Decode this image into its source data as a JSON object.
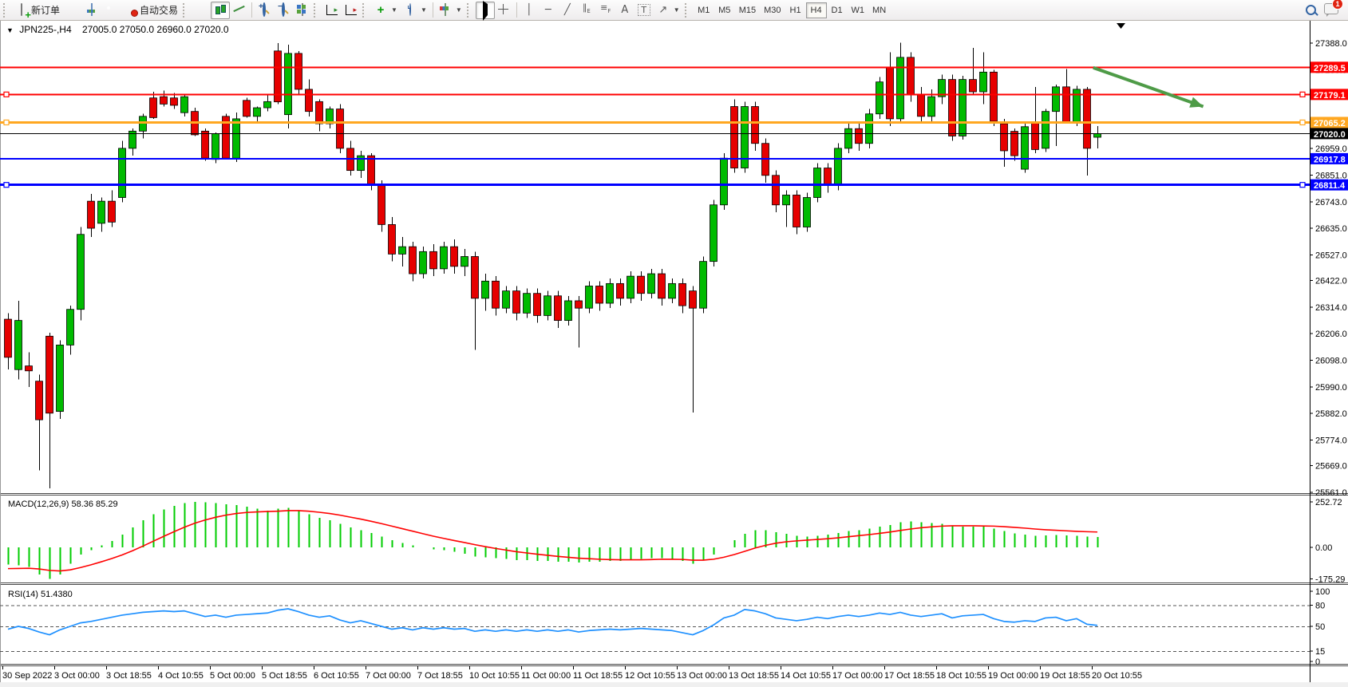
{
  "toolbar": {
    "new_order": "新订单",
    "autotrading": "自动交易",
    "timeframes": [
      {
        "label": "M1",
        "active": false
      },
      {
        "label": "M5",
        "active": false
      },
      {
        "label": "M15",
        "active": false
      },
      {
        "label": "M30",
        "active": false
      },
      {
        "label": "H1",
        "active": false
      },
      {
        "label": "H4",
        "active": true
      },
      {
        "label": "D1",
        "active": false
      },
      {
        "label": "W1",
        "active": false
      },
      {
        "label": "MN",
        "active": false
      }
    ],
    "chat_badge": "1",
    "icons": {
      "new-order-icon": "doc-plus",
      "styler-icon": "gold-gem",
      "market-watch-icon": "mini-chart-window",
      "signals-icon": "green-orb",
      "autotrading-icon": "robot-hat-red-dot",
      "bar-chart-icon": "bars",
      "candlestick-icon": "candles",
      "line-chart-icon": "zigzag",
      "zoom-in-icon": "magnifier-plus",
      "zoom-out-icon": "magnifier-minus",
      "tile-windows-icon": "tiles",
      "auto-scroll-icon": "axis-green-arrow",
      "chart-shift-icon": "axis-red-arrow",
      "indicators-icon": "green-plus",
      "periods-icon": "clock",
      "templates-icon": "colored-chart",
      "cursor-icon": "pointer",
      "crosshair-icon": "cross",
      "vertical-line-icon": "│",
      "horizontal-line-icon": "─",
      "trendline-icon": "╱",
      "channel-icon": "∥",
      "fibonacci-icon": "F≡",
      "text-icon": "A",
      "text-label-icon": "T",
      "arrows-icon": "↗",
      "search-icon": "magnifier",
      "chat-icon": "speech-bubble"
    }
  },
  "chart": {
    "title": {
      "symbol": "JPN225-,H4",
      "ohlc": "27005.0 27050.0 26960.0 27020.0"
    },
    "price_ticks": [
      "27388.0",
      "27280.0",
      "27172.0",
      "27064.0",
      "26959.0",
      "26851.0",
      "26743.0",
      "26635.0",
      "26527.0",
      "26422.0",
      "26314.0",
      "26206.0",
      "26098.0",
      "25990.0",
      "25882.0",
      "25774.0",
      "25669.0",
      "25561.0"
    ],
    "colors": {
      "bull": "#00BB00",
      "bear": "#E60000",
      "wick": "#000000",
      "rsi": "#1E90FF",
      "macd_bar": "#00CC00",
      "macd_signal": "#FF0000",
      "arrow": "#4E9B47"
    }
  },
  "h_lines": [
    {
      "label": "27289.5",
      "price": 27289.5,
      "color": "#FF0000",
      "width": 2,
      "selected": false
    },
    {
      "label": "27179.1",
      "price": 27179.1,
      "color": "#FF0000",
      "width": 2,
      "selected": true
    },
    {
      "label": "27065.2",
      "price": 27065.2,
      "color": "#FFA720",
      "width": 3,
      "selected": true
    },
    {
      "label": "27020.0",
      "price": 27020.0,
      "color": "#000000",
      "width": 1,
      "selected": false
    },
    {
      "label": "26917.8",
      "price": 26917.8,
      "color": "#0000FF",
      "width": 2,
      "selected": false
    },
    {
      "label": "26811.4",
      "price": 26811.4,
      "color": "#0000FF",
      "width": 3,
      "selected": true
    }
  ],
  "arrow_object": {
    "from_price": 27288,
    "to_price": 27130,
    "from_bar": 104.6,
    "to_bar": 115.2,
    "color": "#4E9B47"
  },
  "indicators": {
    "macd_label": "MACD(12,26,9) 58.36 85.29",
    "rsi_label": "RSI(14) 51.4380",
    "macd_ticks": [
      "252.72",
      "0.00",
      "-175.29"
    ],
    "rsi_ticks": [
      "100",
      "80",
      "50",
      "15",
      "0"
    ]
  },
  "chart_data": [
    {
      "type": "candlestick",
      "symbol": "JPN225-",
      "timeframe": "H4",
      "ylim": [
        25561,
        27388
      ],
      "y_ticks": [
        27388,
        27280,
        27172,
        27064,
        26959,
        26851,
        26743,
        26635,
        26527,
        26422,
        26314,
        26206,
        26098,
        25990,
        25882,
        25774,
        25669,
        25561
      ],
      "x_labels": [
        "30 Sep 2022",
        "3 Oct 00:00",
        "3 Oct 18:55",
        "4 Oct 10:55",
        "5 Oct 00:00",
        "5 Oct 18:55",
        "6 Oct 10:55",
        "7 Oct 00:00",
        "7 Oct 18:55",
        "10 Oct 10:55",
        "11 Oct 00:00",
        "11 Oct 18:55",
        "12 Oct 10:55",
        "13 Oct 00:00",
        "13 Oct 18:55",
        "14 Oct 10:55",
        "17 Oct 00:00",
        "17 Oct 18:55",
        "18 Oct 10:55",
        "19 Oct 00:00",
        "19 Oct 18:55",
        "20 Oct 10:55"
      ],
      "bars_per_label": 5,
      "ohlc": [
        [
          26265,
          26290,
          26060,
          26110
        ],
        [
          26060,
          26340,
          26020,
          26260
        ],
        [
          26075,
          26130,
          25990,
          26055
        ],
        [
          26013,
          26040,
          25650,
          25856
        ],
        [
          26196,
          26210,
          25577,
          25883
        ],
        [
          25890,
          26180,
          25860,
          26160
        ],
        [
          26160,
          26320,
          26120,
          26305
        ],
        [
          26305,
          26640,
          26260,
          26610
        ],
        [
          26745,
          26775,
          26600,
          26635
        ],
        [
          26655,
          26760,
          26620,
          26745
        ],
        [
          26745,
          26790,
          26640,
          26660
        ],
        [
          26760,
          26990,
          26740,
          26960
        ],
        [
          26960,
          27040,
          26930,
          27030
        ],
        [
          27030,
          27100,
          27000,
          27090
        ],
        [
          27165,
          27190,
          27080,
          27085
        ],
        [
          27170,
          27195,
          27130,
          27140
        ],
        [
          27165,
          27185,
          27120,
          27135
        ],
        [
          27105,
          27180,
          27090,
          27170
        ],
        [
          27110,
          27125,
          27010,
          27015
        ],
        [
          27030,
          27040,
          26910,
          26920
        ],
        [
          26915,
          27025,
          26900,
          27020
        ],
        [
          27090,
          27100,
          26915,
          26920
        ],
        [
          26920,
          27105,
          26905,
          27080
        ],
        [
          27155,
          27165,
          27085,
          27090
        ],
        [
          27090,
          27130,
          27060,
          27125
        ],
        [
          27125,
          27180,
          27110,
          27150
        ],
        [
          27356,
          27388,
          27140,
          27149
        ],
        [
          27097,
          27382,
          27040,
          27346
        ],
        [
          27346,
          27355,
          27180,
          27200
        ],
        [
          27200,
          27240,
          27090,
          27110
        ],
        [
          27150,
          27160,
          27030,
          27060
        ],
        [
          27060,
          27130,
          27040,
          27120
        ],
        [
          27120,
          27140,
          26940,
          26960
        ],
        [
          26960,
          26990,
          26850,
          26870
        ],
        [
          26870,
          26950,
          26840,
          26930
        ],
        [
          26930,
          26940,
          26790,
          26810
        ],
        [
          26810,
          26830,
          26620,
          26650
        ],
        [
          26650,
          26680,
          26500,
          26530
        ],
        [
          26530,
          26600,
          26480,
          26560
        ],
        [
          26560,
          26580,
          26420,
          26450
        ],
        [
          26450,
          26560,
          26430,
          26540
        ],
        [
          26540,
          26570,
          26440,
          26470
        ],
        [
          26470,
          26580,
          26450,
          26560
        ],
        [
          26560,
          26590,
          26450,
          26480
        ],
        [
          26480,
          26550,
          26440,
          26520
        ],
        [
          26520,
          26540,
          26140,
          26350
        ],
        [
          26350,
          26450,
          26300,
          26420
        ],
        [
          26420,
          26440,
          26280,
          26310
        ],
        [
          26310,
          26400,
          26290,
          26380
        ],
        [
          26380,
          26400,
          26260,
          26290
        ],
        [
          26290,
          26390,
          26270,
          26370
        ],
        [
          26370,
          26390,
          26250,
          26280
        ],
        [
          26280,
          26380,
          26260,
          26360
        ],
        [
          26360,
          26380,
          26230,
          26260
        ],
        [
          26260,
          26360,
          26240,
          26340
        ],
        [
          26340,
          26360,
          26150,
          26310
        ],
        [
          26310,
          26420,
          26290,
          26400
        ],
        [
          26400,
          26420,
          26300,
          26330
        ],
        [
          26330,
          26430,
          26310,
          26410
        ],
        [
          26410,
          26430,
          26320,
          26350
        ],
        [
          26350,
          26460,
          26330,
          26440
        ],
        [
          26440,
          26460,
          26340,
          26370
        ],
        [
          26370,
          26470,
          26350,
          26450
        ],
        [
          26450,
          26470,
          26320,
          26350
        ],
        [
          26350,
          26430,
          26330,
          26410
        ],
        [
          26410,
          26430,
          26290,
          26320
        ],
        [
          26380,
          26400,
          25885,
          26310
        ],
        [
          26310,
          26520,
          26290,
          26500
        ],
        [
          26500,
          26750,
          26480,
          26730
        ],
        [
          26730,
          26940,
          26710,
          26920
        ],
        [
          27130,
          27160,
          26860,
          26880
        ],
        [
          26880,
          27150,
          26860,
          27130
        ],
        [
          27130,
          27150,
          26950,
          26980
        ],
        [
          26980,
          27000,
          26820,
          26850
        ],
        [
          26850,
          26870,
          26700,
          26730
        ],
        [
          26730,
          26790,
          26640,
          26770
        ],
        [
          26770,
          26790,
          26610,
          26640
        ],
        [
          26640,
          26780,
          26620,
          26760
        ],
        [
          26760,
          26900,
          26740,
          26880
        ],
        [
          26880,
          26900,
          26780,
          26810
        ],
        [
          26810,
          26980,
          26790,
          26960
        ],
        [
          26960,
          27060,
          26940,
          27040
        ],
        [
          27040,
          27060,
          26950,
          26980
        ],
        [
          26980,
          27120,
          26960,
          27100
        ],
        [
          27100,
          27250,
          27080,
          27230
        ],
        [
          27290,
          27350,
          27050,
          27080
        ],
        [
          27080,
          27390,
          27060,
          27330
        ],
        [
          27330,
          27350,
          27150,
          27180
        ],
        [
          27180,
          27210,
          27060,
          27090
        ],
        [
          27090,
          27200,
          27070,
          27170
        ],
        [
          27170,
          27260,
          27140,
          27240
        ],
        [
          27240,
          27260,
          26990,
          27010
        ],
        [
          27010,
          27255,
          26995,
          27240
        ],
        [
          27240,
          27369,
          27180,
          27190
        ],
        [
          27190,
          27350,
          27140,
          27270
        ],
        [
          27270,
          27280,
          27050,
          27070
        ],
        [
          27060,
          27080,
          26885,
          26950
        ],
        [
          27029,
          27040,
          26910,
          26930
        ],
        [
          26875,
          27060,
          26860,
          27048
        ],
        [
          27068,
          27210,
          26940,
          26955
        ],
        [
          26960,
          27120,
          26945,
          27110
        ],
        [
          27110,
          27220,
          26970,
          27210
        ],
        [
          27210,
          27283,
          27060,
          27065
        ],
        [
          27065,
          27215,
          27050,
          27200
        ],
        [
          27200,
          27210,
          26850,
          26960
        ],
        [
          27005,
          27050,
          26960,
          27020
        ]
      ]
    },
    {
      "type": "bar",
      "name": "MACD",
      "params": "12,26,9",
      "current_values": [
        58.36,
        85.29
      ],
      "ylim": [
        -195,
        265
      ],
      "y_ticks": [
        252.72,
        0.0,
        -175.29
      ],
      "values": [
        -95,
        -100,
        -108,
        -150,
        -175.3,
        -150,
        -90,
        -40,
        -15,
        10,
        35,
        70,
        110,
        150,
        185,
        210,
        230,
        245,
        252.7,
        250,
        245,
        240,
        235,
        225,
        215,
        205,
        215,
        220,
        205,
        185,
        165,
        150,
        130,
        110,
        95,
        80,
        60,
        40,
        25,
        10,
        0,
        -10,
        -15,
        -25,
        -35,
        -50,
        -55,
        -60,
        -65,
        -70,
        -70,
        -75,
        -75,
        -80,
        -80,
        -85,
        -80,
        -80,
        -75,
        -75,
        -70,
        -65,
        -60,
        -60,
        -65,
        -75,
        -90,
        -70,
        -40,
        0,
        40,
        75,
        95,
        95,
        85,
        75,
        65,
        60,
        65,
        70,
        80,
        90,
        95,
        105,
        115,
        125,
        140,
        145,
        140,
        135,
        130,
        120,
        115,
        115,
        115,
        105,
        90,
        78,
        70,
        64,
        66,
        68,
        66,
        64,
        60,
        58.4
      ],
      "signal": [
        -118,
        -117,
        -116,
        -120,
        -128,
        -131,
        -125,
        -112,
        -97,
        -80,
        -62,
        -42,
        -19,
        7,
        34,
        61,
        87,
        112,
        134,
        152,
        167,
        179,
        188,
        194,
        197,
        199,
        201,
        204,
        204,
        201,
        195,
        188,
        179,
        168,
        157,
        145,
        132,
        118,
        104,
        90,
        76,
        62,
        50,
        38,
        27,
        15,
        4,
        -6,
        -15,
        -24,
        -31,
        -38,
        -44,
        -50,
        -55,
        -60,
        -63,
        -66,
        -68,
        -69,
        -69,
        -69,
        -68,
        -66,
        -66,
        -67,
        -71,
        -71,
        -66,
        -55,
        -40,
        -22,
        -4,
        11,
        23,
        31,
        36,
        40,
        44,
        48,
        53,
        59,
        65,
        71,
        78,
        85,
        94,
        102,
        109,
        114,
        118,
        120,
        120,
        120,
        119,
        118,
        115,
        111,
        107,
        102,
        98,
        95,
        92,
        89,
        87,
        85.3
      ]
    },
    {
      "type": "line",
      "name": "RSI",
      "params": "14",
      "current_value": 51.438,
      "ylim": [
        0,
        100
      ],
      "levels": [
        80,
        50,
        15
      ],
      "y_ticks": [
        100,
        80,
        50,
        15,
        0
      ],
      "values": [
        46,
        50,
        47,
        42,
        38,
        45,
        50,
        55,
        57,
        60,
        63,
        66,
        68,
        70,
        71,
        72,
        71,
        72,
        68,
        64,
        66,
        63,
        66,
        67,
        68,
        69,
        73,
        75,
        71,
        66,
        63,
        65,
        59,
        55,
        58,
        54,
        50,
        46,
        48,
        45,
        48,
        46,
        48,
        46,
        47,
        43,
        45,
        43,
        45,
        43,
        45,
        43,
        45,
        43,
        45,
        42,
        44,
        45,
        46,
        45,
        46,
        47,
        46,
        45,
        44,
        41,
        38,
        44,
        52,
        62,
        66,
        74,
        72,
        68,
        62,
        60,
        58,
        60,
        63,
        61,
        64,
        66,
        64,
        66,
        69,
        67,
        70,
        66,
        64,
        66,
        68,
        62,
        65,
        66,
        67,
        61,
        57,
        56,
        58,
        57,
        62,
        63,
        58,
        61,
        53,
        51.44
      ]
    }
  ]
}
